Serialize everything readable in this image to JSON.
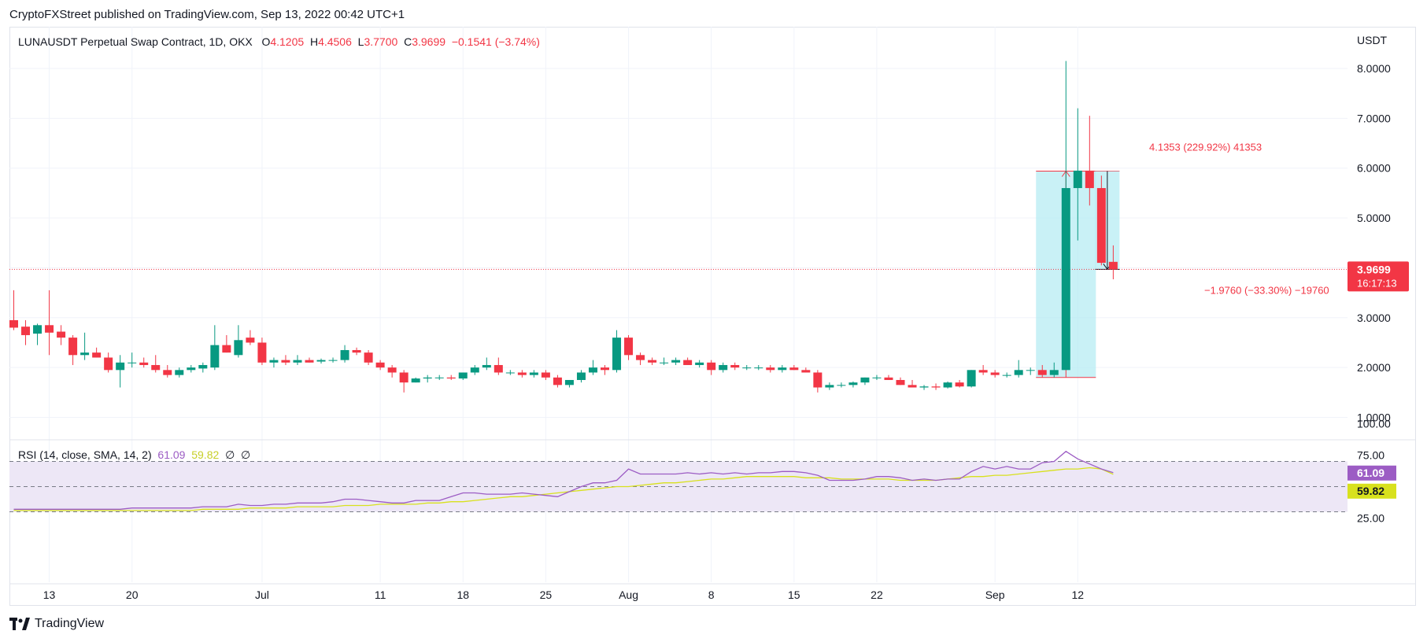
{
  "header": {
    "published": "CryptoFXStreet published on TradingView.com, Sep 13, 2022 00:42 UTC+1"
  },
  "legend": {
    "symbol": "LUNAUSDT Perpetual Swap Contract, 1D, OKX",
    "o_label": "O",
    "o": "4.1205",
    "h_label": "H",
    "h": "4.4506",
    "l_label": "L",
    "l": "3.7700",
    "c_label": "C",
    "c": "3.9699",
    "change": "−0.1541 (−3.74%)"
  },
  "rsi_legend": {
    "title": "RSI (14, close, SMA, 14, 2)",
    "rsi": "61.09",
    "sma": "59.82",
    "v1": "∅",
    "v2": "∅"
  },
  "price_axis": {
    "currency": "USDT",
    "ticks": [
      "8.0000",
      "7.0000",
      "6.0000",
      "5.0000",
      "3.0000",
      "2.0000",
      "1.0000"
    ]
  },
  "price_badge": {
    "price": "3.9699",
    "countdown": "16:17:13"
  },
  "rsi_axis": {
    "ticks": [
      "100.00",
      "75.00",
      "25.00"
    ],
    "rsi_value": "61.09",
    "sma_value": "59.82"
  },
  "time_axis": [
    "13",
    "20",
    "Jul",
    "11",
    "18",
    "25",
    "Aug",
    "8",
    "15",
    "22",
    "Sep",
    "12"
  ],
  "annotations": {
    "long_label": "4.1353 (229.92%) 41353",
    "short_label": "−1.9760 (−33.30%) −19760"
  },
  "footer": {
    "brand": "TradingView"
  },
  "colors": {
    "up": "#089981",
    "down": "#f23645",
    "rsi": "#9c5cc4",
    "sma": "#d8e11d",
    "band": "#ede7f6",
    "measure": "#b2ebf2"
  },
  "chart_data": {
    "type": "candlestick",
    "start_date": "2022-06-10",
    "ohlc": [
      [
        2.95,
        3.55,
        2.75,
        2.8
      ],
      [
        2.82,
        2.95,
        2.45,
        2.65
      ],
      [
        2.68,
        2.88,
        2.45,
        2.85
      ],
      [
        2.85,
        3.55,
        2.25,
        2.7
      ],
      [
        2.72,
        2.85,
        2.45,
        2.6
      ],
      [
        2.6,
        2.65,
        2.05,
        2.25
      ],
      [
        2.25,
        2.7,
        2.15,
        2.3
      ],
      [
        2.3,
        2.4,
        2.2,
        2.2
      ],
      [
        2.2,
        2.3,
        1.9,
        1.95
      ],
      [
        1.95,
        2.25,
        1.6,
        2.1
      ],
      [
        2.1,
        2.3,
        2.0,
        2.1
      ],
      [
        2.1,
        2.2,
        2.0,
        2.05
      ],
      [
        2.05,
        2.25,
        1.9,
        1.95
      ],
      [
        1.95,
        2.05,
        1.8,
        1.85
      ],
      [
        1.85,
        2.0,
        1.8,
        1.95
      ],
      [
        1.95,
        2.05,
        1.9,
        2.0
      ],
      [
        1.98,
        2.1,
        1.9,
        2.05
      ],
      [
        2.0,
        2.85,
        1.95,
        2.45
      ],
      [
        2.45,
        2.65,
        2.3,
        2.3
      ],
      [
        2.25,
        2.85,
        2.2,
        2.55
      ],
      [
        2.6,
        2.75,
        2.45,
        2.5
      ],
      [
        2.5,
        2.6,
        2.05,
        2.1
      ],
      [
        2.1,
        2.2,
        2.0,
        2.15
      ],
      [
        2.15,
        2.25,
        2.05,
        2.1
      ],
      [
        2.1,
        2.25,
        2.05,
        2.15
      ],
      [
        2.15,
        2.2,
        2.1,
        2.1
      ],
      [
        2.12,
        2.18,
        2.08,
        2.15
      ],
      [
        2.15,
        2.2,
        2.1,
        2.15
      ],
      [
        2.15,
        2.45,
        2.1,
        2.35
      ],
      [
        2.35,
        2.4,
        2.25,
        2.3
      ],
      [
        2.3,
        2.35,
        2.05,
        2.1
      ],
      [
        2.1,
        2.15,
        1.95,
        2.0
      ],
      [
        2.0,
        2.05,
        1.8,
        1.9
      ],
      [
        1.9,
        1.95,
        1.5,
        1.7
      ],
      [
        1.7,
        1.8,
        1.7,
        1.78
      ],
      [
        1.78,
        1.85,
        1.7,
        1.8
      ],
      [
        1.8,
        1.85,
        1.75,
        1.8
      ],
      [
        1.8,
        1.85,
        1.75,
        1.78
      ],
      [
        1.78,
        1.9,
        1.75,
        1.9
      ],
      [
        1.9,
        2.05,
        1.85,
        2.0
      ],
      [
        2.0,
        2.2,
        1.95,
        2.05
      ],
      [
        2.05,
        2.2,
        1.85,
        1.9
      ],
      [
        1.9,
        1.95,
        1.85,
        1.9
      ],
      [
        1.9,
        1.95,
        1.8,
        1.85
      ],
      [
        1.85,
        1.95,
        1.8,
        1.9
      ],
      [
        1.9,
        1.95,
        1.75,
        1.8
      ],
      [
        1.8,
        1.85,
        1.6,
        1.65
      ],
      [
        1.65,
        1.75,
        1.6,
        1.75
      ],
      [
        1.75,
        1.95,
        1.7,
        1.9
      ],
      [
        1.9,
        2.15,
        1.85,
        2.0
      ],
      [
        2.0,
        2.05,
        1.85,
        1.95
      ],
      [
        1.95,
        2.75,
        1.9,
        2.6
      ],
      [
        2.6,
        2.65,
        2.15,
        2.25
      ],
      [
        2.25,
        2.3,
        2.05,
        2.15
      ],
      [
        2.15,
        2.2,
        2.05,
        2.1
      ],
      [
        2.1,
        2.2,
        2.05,
        2.1
      ],
      [
        2.1,
        2.2,
        2.05,
        2.15
      ],
      [
        2.15,
        2.2,
        2.05,
        2.05
      ],
      [
        2.05,
        2.15,
        2.0,
        2.1
      ],
      [
        2.1,
        2.15,
        1.85,
        1.95
      ],
      [
        1.95,
        2.1,
        1.9,
        2.05
      ],
      [
        2.05,
        2.1,
        1.95,
        2.0
      ],
      [
        2.0,
        2.05,
        1.95,
        2.0
      ],
      [
        2.0,
        2.05,
        1.95,
        2.0
      ],
      [
        2.0,
        2.05,
        1.9,
        1.95
      ],
      [
        1.95,
        2.05,
        1.9,
        2.0
      ],
      [
        2.0,
        2.05,
        1.95,
        1.95
      ],
      [
        1.95,
        2.0,
        1.9,
        1.9
      ],
      [
        1.9,
        1.95,
        1.5,
        1.6
      ],
      [
        1.6,
        1.7,
        1.55,
        1.65
      ],
      [
        1.65,
        1.7,
        1.6,
        1.65
      ],
      [
        1.65,
        1.72,
        1.6,
        1.7
      ],
      [
        1.7,
        1.8,
        1.65,
        1.8
      ],
      [
        1.8,
        1.85,
        1.75,
        1.8
      ],
      [
        1.8,
        1.85,
        1.75,
        1.75
      ],
      [
        1.75,
        1.8,
        1.65,
        1.65
      ],
      [
        1.65,
        1.75,
        1.6,
        1.6
      ],
      [
        1.6,
        1.65,
        1.55,
        1.62
      ],
      [
        1.62,
        1.68,
        1.55,
        1.6
      ],
      [
        1.6,
        1.72,
        1.58,
        1.7
      ],
      [
        1.7,
        1.75,
        1.6,
        1.62
      ],
      [
        1.62,
        1.95,
        1.6,
        1.95
      ],
      [
        1.95,
        2.05,
        1.85,
        1.9
      ],
      [
        1.9,
        1.95,
        1.8,
        1.85
      ],
      [
        1.85,
        1.9,
        1.8,
        1.85
      ],
      [
        1.85,
        2.15,
        1.8,
        1.95
      ],
      [
        1.95,
        2.0,
        1.85,
        1.95
      ],
      [
        1.95,
        2.05,
        1.8,
        1.85
      ],
      [
        1.85,
        2.1,
        1.8,
        1.95
      ],
      [
        1.95,
        8.15,
        1.95,
        5.6
      ],
      [
        5.6,
        7.2,
        4.55,
        5.95
      ],
      [
        5.95,
        7.05,
        5.25,
        5.6
      ],
      [
        5.6,
        5.85,
        4.05,
        4.1
      ],
      [
        4.12,
        4.45,
        3.77,
        3.97
      ]
    ],
    "rsi": [
      32,
      32,
      32,
      32,
      32,
      32,
      32,
      32,
      32,
      32,
      33,
      33,
      33,
      33,
      33,
      33,
      34,
      34,
      34,
      36,
      35,
      35,
      36,
      36,
      37,
      37,
      37,
      38,
      40,
      40,
      39,
      38,
      37,
      37,
      39,
      39,
      39,
      42,
      45,
      45,
      44,
      44,
      44,
      45,
      44,
      43,
      42,
      46,
      50,
      53,
      53,
      55,
      64,
      60,
      60,
      60,
      60,
      61,
      60,
      61,
      60,
      61,
      60,
      61,
      61,
      62,
      62,
      61,
      59,
      55,
      55,
      55,
      56,
      58,
      58,
      57,
      55,
      56,
      55,
      56,
      56,
      62,
      66,
      64,
      66,
      64,
      64,
      69,
      70,
      78,
      72,
      68,
      64,
      61.09
    ],
    "rsi_sma": [
      31,
      31,
      31,
      31,
      31,
      31,
      31,
      31,
      31,
      31,
      31,
      31,
      31,
      31,
      31,
      31,
      32,
      32,
      32,
      32,
      33,
      33,
      33,
      33,
      34,
      34,
      34,
      34,
      35,
      35,
      35,
      36,
      36,
      36,
      36,
      37,
      37,
      38,
      38,
      39,
      40,
      41,
      42,
      42,
      43,
      44,
      45,
      46,
      47,
      48,
      49,
      50,
      50,
      51,
      52,
      53,
      53,
      54,
      55,
      56,
      56,
      57,
      58,
      58,
      58,
      58,
      58,
      57,
      57,
      57,
      56,
      56,
      56,
      56,
      56,
      55,
      55,
      55,
      55,
      56,
      57,
      58,
      58,
      59,
      59,
      60,
      61,
      62,
      63,
      64,
      64,
      65,
      64,
      59.82
    ],
    "price_ylim": [
      1,
      8
    ],
    "rsi_ylim": [
      0,
      100
    ],
    "rsi_band": [
      30,
      70
    ],
    "long_position": {
      "entry": 1.8,
      "target": 5.94,
      "start_index": 87,
      "end_index": 91
    },
    "short_position": {
      "entry": 5.94,
      "target": 3.97,
      "start_index": 92,
      "end_index": 93
    },
    "last_price": 3.9699
  }
}
